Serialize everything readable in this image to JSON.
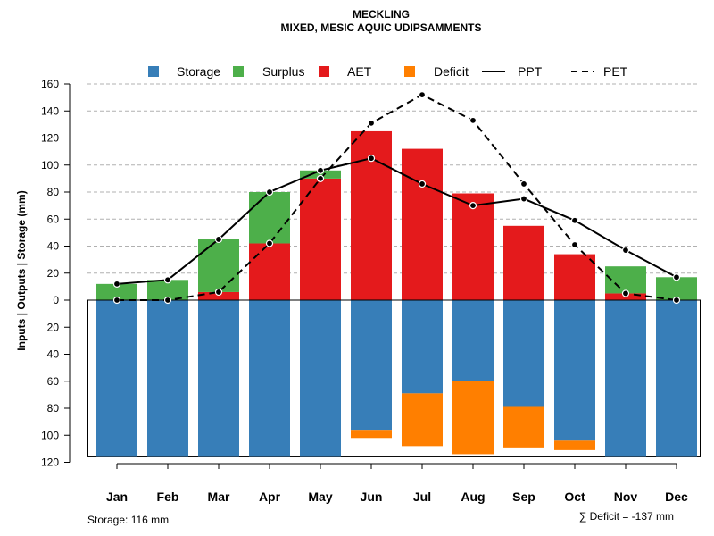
{
  "chart_data": {
    "type": "bar",
    "title": "MECKLING",
    "subtitle": "MIXED, MESIC AQUIC UDIPSAMMENTS",
    "ylabel": "Inputs | Outputs | Storage    (mm)",
    "categories": [
      "Jan",
      "Feb",
      "Mar",
      "Apr",
      "May",
      "Jun",
      "Jul",
      "Aug",
      "Sep",
      "Oct",
      "Nov",
      "Dec"
    ],
    "ylim": [
      -120,
      160
    ],
    "yticks_upper": [
      0,
      20,
      40,
      60,
      80,
      100,
      120,
      140,
      160
    ],
    "yticks_lower": [
      20,
      40,
      60,
      80,
      100,
      120
    ],
    "storage_capacity": 116,
    "colors": {
      "Storage": "#377EB8",
      "Surplus": "#4DAF4A",
      "AET": "#E41A1C",
      "Deficit": "#FF7F00",
      "PPT": "#000000",
      "PET": "#000000"
    },
    "legend": [
      "Storage",
      "Surplus",
      "AET",
      "Deficit",
      "PPT",
      "PET"
    ],
    "series": [
      {
        "name": "Storage",
        "values": [
          116,
          116,
          116,
          116,
          116,
          96,
          69,
          60,
          79,
          104,
          116,
          116
        ]
      },
      {
        "name": "Surplus",
        "values": [
          12,
          15,
          39,
          38,
          6,
          0,
          0,
          0,
          0,
          0,
          20,
          17
        ]
      },
      {
        "name": "AET",
        "values": [
          0,
          0,
          6,
          42,
          90,
          125,
          112,
          79,
          55,
          34,
          5,
          0
        ]
      },
      {
        "name": "Deficit",
        "values": [
          0,
          0,
          0,
          0,
          0,
          6,
          39,
          54,
          30,
          7,
          0,
          0
        ]
      },
      {
        "name": "PPT",
        "values": [
          12,
          15,
          45,
          80,
          96,
          105,
          86,
          70,
          75,
          59,
          37,
          17
        ]
      },
      {
        "name": "PET",
        "values": [
          0,
          0,
          6,
          42,
          90,
          131,
          152,
          133,
          86,
          41,
          5,
          0
        ]
      }
    ],
    "footer_left": "Storage: 116 mm",
    "footer_right": "∑ Deficit = -137 mm"
  }
}
